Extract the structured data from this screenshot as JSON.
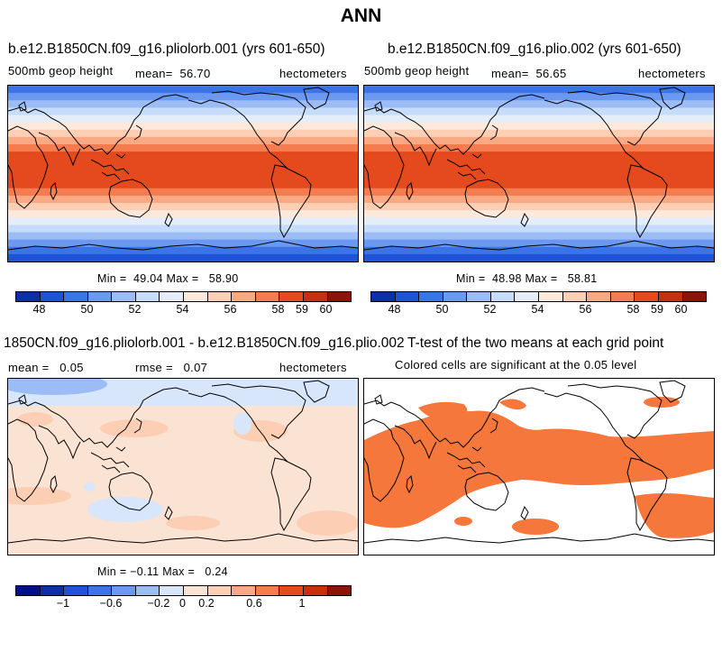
{
  "title": "ANN",
  "colors": {
    "land_outline": "#000000",
    "significant": "#f5773b",
    "abs_bands": [
      "#0d2fa6",
      "#1f52d6",
      "#3b74e6",
      "#6b98f0",
      "#9cbcf5",
      "#c5dcfa",
      "#e4eefb",
      "#fde9dc",
      "#fccfb4",
      "#f9a983",
      "#f47c4e",
      "#e54a1f",
      "#c5300f",
      "#8a1508"
    ],
    "diff_bands": [
      "#000f8a",
      "#0d2fa6",
      "#1f52d6",
      "#3b74e6",
      "#6b98f0",
      "#9cbcf5",
      "#d7e6fb",
      "#fbe3d3",
      "#fccfb4",
      "#f9a983",
      "#f47c4e",
      "#e54a1f",
      "#c5300f",
      "#8a1508"
    ]
  },
  "panels": {
    "p1": {
      "title": "b.e12.B1850CN.f09_g16.pliolorb.001 (yrs 601-650)",
      "variable": "500mb geop height",
      "mean_label": "mean=",
      "mean_value": "56.70",
      "units": "hectometers",
      "min_label": "Min =",
      "min_value": "49.04",
      "max_label": "Max =",
      "max_value": "58.90",
      "ticks": [
        "48",
        "50",
        "52",
        "54",
        "56",
        "58",
        "59",
        "60"
      ]
    },
    "p2": {
      "title": "b.e12.B1850CN.f09_g16.plio.002 (yrs 601-650)",
      "variable": "500mb geop height",
      "mean_label": "mean=",
      "mean_value": "56.65",
      "units": "hectometers",
      "min_label": "Min =",
      "min_value": "48.98",
      "max_label": "Max =",
      "max_value": "58.81",
      "ticks": [
        "48",
        "50",
        "52",
        "54",
        "56",
        "58",
        "59",
        "60"
      ]
    },
    "p3": {
      "title": "1850CN.f09_g16.pliolorb.001 - b.e12.B1850CN.f09_g16.plio.002",
      "mean_label": "mean =",
      "mean_value": "0.05",
      "rmse_label": "rmse =",
      "rmse_value": "0.07",
      "units": "hectometers",
      "min_label": "Min =",
      "min_value": "−0.11",
      "max_label": "Max =",
      "max_value": "0.24",
      "ticks": [
        "−1",
        "−0.6",
        "−0.2",
        "0",
        "0.2",
        "0.6",
        "1"
      ]
    },
    "p4": {
      "title": "T-test of the two means at each grid point",
      "subtitle": "Colored cells are significant at the 0.05 level"
    }
  }
}
